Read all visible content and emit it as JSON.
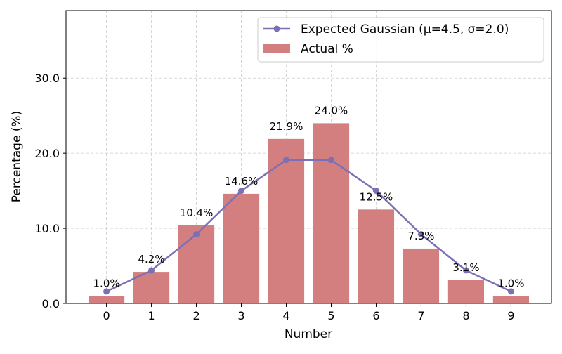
{
  "chart_data": {
    "type": "bar",
    "xlabel": "Number",
    "ylabel": "Percentage (%)",
    "categories": [
      "0",
      "1",
      "2",
      "3",
      "4",
      "5",
      "6",
      "7",
      "8",
      "9"
    ],
    "ylim": [
      0,
      39
    ],
    "yticks": [
      0,
      10,
      20,
      30
    ],
    "ytick_labels": [
      "0.0",
      "10.0",
      "20.0",
      "30.0"
    ],
    "grid": true,
    "legend_position": "top-right",
    "series": [
      {
        "type": "bar",
        "name": "Actual %",
        "color": "#d47f7f",
        "values": [
          1.0,
          4.2,
          10.4,
          14.6,
          21.9,
          24.0,
          12.5,
          7.3,
          3.1,
          1.0
        ],
        "labels": [
          "1.0%",
          "4.2%",
          "10.4%",
          "14.6%",
          "21.9%",
          "24.0%",
          "12.5%",
          "7.3%",
          "3.1%",
          "1.0%"
        ]
      },
      {
        "type": "line",
        "name": "Expected Gaussian (μ=4.5, σ=2.0)",
        "color": "#7b70b6",
        "marker": "circle",
        "values": [
          1.6,
          4.4,
          9.2,
          15.0,
          19.1,
          19.1,
          15.0,
          9.2,
          4.4,
          1.6
        ]
      }
    ]
  }
}
